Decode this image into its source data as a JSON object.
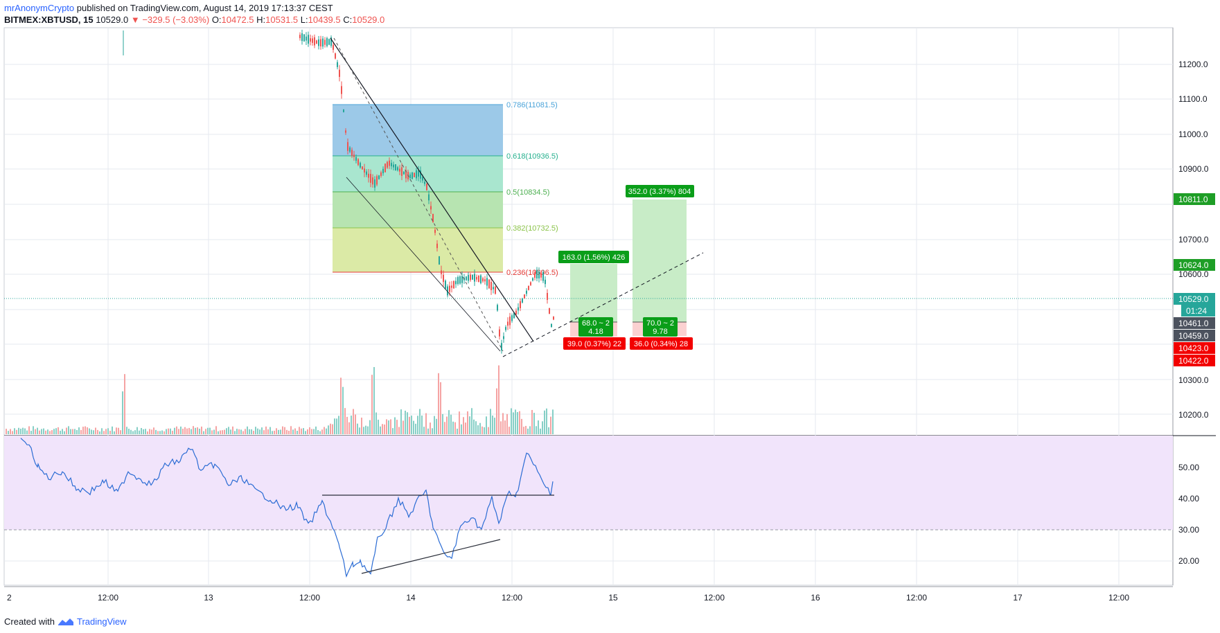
{
  "header": {
    "author": "mrAnonymCrypto",
    "published": "published on TradingView.com, August 14, 2019 17:13:37 CEST",
    "symbol": "BITMEX:XBTUSD, 15",
    "last": "10529.0",
    "change": "−329.5 (−3.03%)",
    "o_label": "O:",
    "o_value": "10472.5",
    "h_label": "H:",
    "h_value": "10531.5",
    "l_label": "L:",
    "l_value": "10439.5",
    "c_label": "C:",
    "c_value": "10529.0"
  },
  "footer": {
    "created_with": "Created with",
    "brand": "TradingView"
  },
  "price_axis": {
    "ticks": [
      "11200.0",
      "11100.0",
      "11000.0",
      "10900.0",
      "10700.0",
      "10600.0",
      "10300.0",
      "10200.0"
    ],
    "tags": [
      {
        "text": "10811.0",
        "color": "#1e9e26"
      },
      {
        "text": "10624.0",
        "color": "#1e9e26"
      },
      {
        "text": "10529.0",
        "color": "#26a69a"
      },
      {
        "text": "01:24",
        "color": "#26a69a"
      },
      {
        "text": "10461.0",
        "color": "#4c525e"
      },
      {
        "text": "10459.0",
        "color": "#4c525e"
      },
      {
        "text": "10423.0",
        "color": "#f20000"
      },
      {
        "text": "10422.0",
        "color": "#f20000"
      }
    ]
  },
  "rsi_axis": {
    "ticks": [
      "50.00",
      "40.00",
      "30.00",
      "20.00"
    ]
  },
  "time_axis": {
    "ticks": [
      "2",
      "12:00",
      "13",
      "12:00",
      "14",
      "12:00",
      "15",
      "12:00",
      "16",
      "12:00",
      "17",
      "12:00"
    ]
  },
  "fib_levels": [
    {
      "text": "0.786(11081.5)",
      "color": "#4aa3d9"
    },
    {
      "text": "0.618(10936.5)",
      "color": "#26b08e"
    },
    {
      "text": "0.5(10834.5)",
      "color": "#4caf50"
    },
    {
      "text": "0.382(10732.5)",
      "color": "#8bc34a"
    },
    {
      "text": "0.236(10606.5)",
      "color": "#e53935"
    }
  ],
  "positions": [
    {
      "target": "163.0 (1.56%) 426",
      "ratio_top": "68.0 ~ 2",
      "ratio_bot": "4.18",
      "stop": "39.0 (0.37%) 22"
    },
    {
      "target": "352.0 (3.37%) 804",
      "ratio_top": "70.0 ~ 2",
      "ratio_bot": "9.78",
      "stop": "36.0 (0.34%) 28"
    }
  ],
  "colors": {
    "up": "#26a69a",
    "down": "#ef5350",
    "rsi_line": "#2b6cd4",
    "rsi_band": "#f1e4fb",
    "grid": "#e6e9ef"
  }
}
